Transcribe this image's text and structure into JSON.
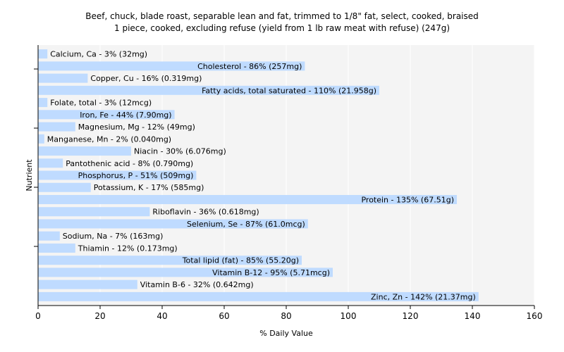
{
  "chart_data": {
    "type": "bar",
    "orientation": "horizontal",
    "title": [
      "Beef, chuck, blade roast, separable lean and fat, trimmed to 1/8\" fat, select, cooked, braised",
      "1 piece, cooked, excluding refuse (yield from 1 lb raw meat with refuse) (247g)"
    ],
    "xlabel": "% Daily Value",
    "ylabel": "Nutrient",
    "xlim": [
      0,
      160
    ],
    "xticks": [
      0,
      20,
      40,
      60,
      80,
      100,
      120,
      140,
      160
    ],
    "grid": true,
    "bar_color": "#bfdbff",
    "categories": [
      "Calcium, Ca",
      "Cholesterol",
      "Copper, Cu",
      "Fatty acids, total saturated",
      "Folate, total",
      "Iron, Fe",
      "Magnesium, Mg",
      "Manganese, Mn",
      "Niacin",
      "Pantothenic acid",
      "Phosphorus, P",
      "Potassium, K",
      "Protein",
      "Riboflavin",
      "Selenium, Se",
      "Sodium, Na",
      "Thiamin",
      "Total lipid (fat)",
      "Vitamin B-12",
      "Vitamin B-6",
      "Zinc, Zn"
    ],
    "values": [
      3,
      86,
      16,
      110,
      3,
      44,
      12,
      2,
      30,
      8,
      51,
      17,
      135,
      36,
      87,
      7,
      12,
      85,
      95,
      32,
      142
    ],
    "labels": [
      "Calcium, Ca - 3% (32mg)",
      "Cholesterol - 86% (257mg)",
      "Copper, Cu - 16% (0.319mg)",
      "Fatty acids, total saturated - 110% (21.958g)",
      "Folate, total - 3% (12mcg)",
      "Iron, Fe - 44% (7.90mg)",
      "Magnesium, Mg - 12% (49mg)",
      "Manganese, Mn - 2% (0.040mg)",
      "Niacin - 30% (6.076mg)",
      "Pantothenic acid - 8% (0.790mg)",
      "Phosphorus, P - 51% (509mg)",
      "Potassium, K - 17% (585mg)",
      "Protein - 135% (67.51g)",
      "Riboflavin - 36% (0.618mg)",
      "Selenium, Se - 87% (61.0mcg)",
      "Sodium, Na - 7% (163mg)",
      "Thiamin - 12% (0.173mg)",
      "Total lipid (fat) - 85% (55.20g)",
      "Vitamin B-12 - 95% (5.71mcg)",
      "Vitamin B-6 - 32% (0.642mg)",
      "Zinc, Zn - 142% (21.37mg)"
    ]
  }
}
